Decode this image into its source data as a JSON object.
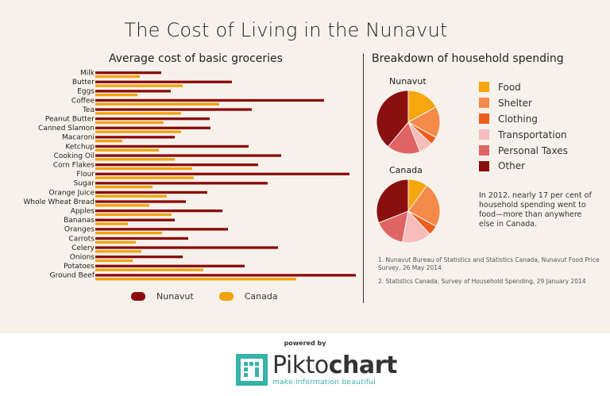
{
  "title": "The Cost of Living in the Nunavut",
  "left_subtitle": "Average cost of basic groceries",
  "right_subtitle": "Breakdown of household spending",
  "colors": {
    "nunavut": "#8b0a0a",
    "canada": "#f0a30a",
    "food": "#f5a70d",
    "shelter": "#f58b4a",
    "clothing": "#ee5c1c",
    "transportation": "#f7bcbc",
    "personal_taxes": "#e06464",
    "other": "#8a0f0f"
  },
  "chart_data": [
    {
      "type": "bar",
      "title": "Average cost of basic groceries",
      "orientation": "horizontal",
      "categories": [
        "Milk",
        "Butter",
        "Eggs",
        "Coffee",
        "Tea",
        "Peanut Butter",
        "Canned Slamon",
        "Macaroni",
        "Ketchup",
        "Cooking Oil",
        "Corn Flakes",
        "Flour",
        "Sugar",
        "Orange Juice",
        "Whole Wheat Bread",
        "Apples",
        "Bananas",
        "Oranges",
        "Carrots",
        "Celery",
        "Onions",
        "Potatoes",
        "Ground Beef"
      ],
      "series": [
        {
          "name": "Nunavut",
          "values": [
            83,
            172,
            95,
            288,
            197,
            144,
            145,
            100,
            193,
            234,
            205,
            320,
            217,
            141,
            114,
            160,
            100,
            167,
            117,
            230,
            110,
            188,
            328
          ]
        },
        {
          "name": "Canada",
          "values": [
            56,
            110,
            53,
            156,
            108,
            86,
            108,
            34,
            80,
            100,
            122,
            124,
            72,
            90,
            68,
            96,
            41,
            84,
            51,
            58,
            47,
            136,
            253
          ]
        }
      ],
      "legend": [
        "Nunavut",
        "Canada"
      ]
    },
    {
      "type": "pie",
      "title": "Nunavut",
      "labels": [
        "Food",
        "Shelter",
        "Clothing",
        "Transportation",
        "Personal Taxes",
        "Other"
      ],
      "values": [
        17,
        16,
        4,
        7,
        17,
        39
      ]
    },
    {
      "type": "pie",
      "title": "Canada",
      "labels": [
        "Food",
        "Shelter",
        "Clothing",
        "Transportation",
        "Personal Taxes",
        "Other"
      ],
      "values": [
        10,
        23,
        5,
        15,
        16,
        31
      ]
    }
  ],
  "pie_legend": [
    {
      "label": "Food",
      "color": "#f5a70d"
    },
    {
      "label": "Shelter",
      "color": "#f58b4a"
    },
    {
      "label": "Clothing",
      "color": "#ee5c1c"
    },
    {
      "label": "Transportation",
      "color": "#f7bcbc"
    },
    {
      "label": "Personal Taxes",
      "color": "#e06464"
    },
    {
      "label": "Other",
      "color": "#8a0f0f"
    }
  ],
  "note": "In 2012,    nearly 17 per cent of household spending went to food—more than anywhere else in Canada.",
  "sources": [
    "1. Nunavut Bureau of Statistics and Statistics Canada, Nunavut Food Price Survey, 26 May 2014",
    "2. Statistics Canada, Survey of Household Spending, 29 January 2014"
  ],
  "footer": {
    "powered_by": "powered by",
    "brand_part1": "Pikto",
    "brand_part2": "chart",
    "tagline": "make information beautiful"
  }
}
